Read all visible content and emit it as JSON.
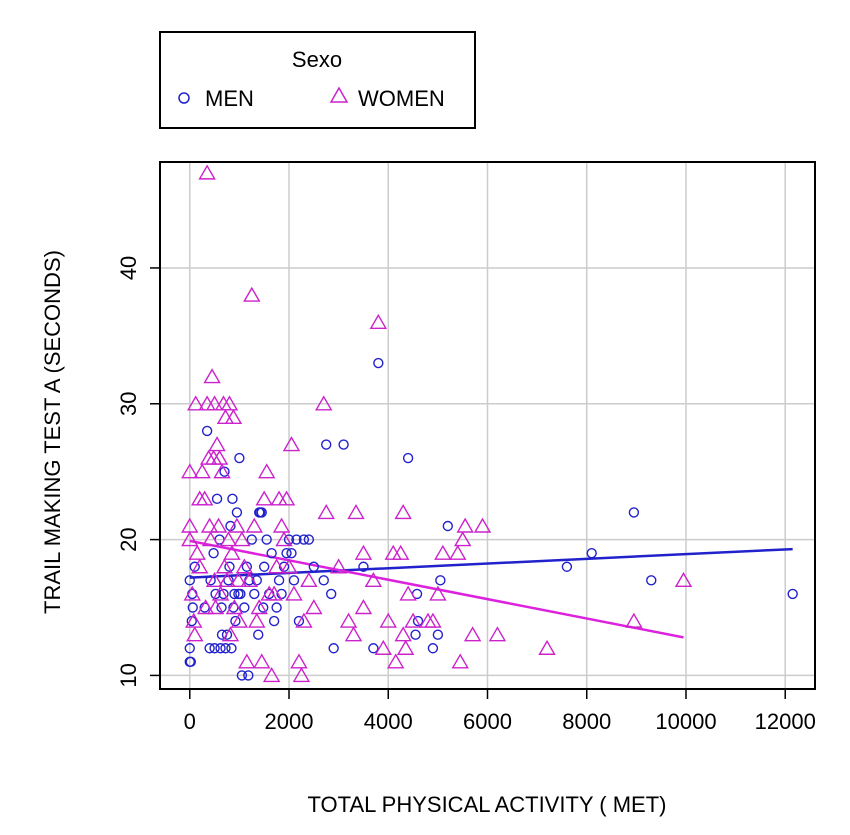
{
  "chart_data": {
    "type": "scatter",
    "xlabel": "TOTAL PHYSICAL ACTIVITY ( MET)",
    "ylabel": "TRAIL MAKING TEST A (SECONDS)",
    "xlim": [
      -600,
      12600
    ],
    "ylim": [
      9,
      47.8
    ],
    "x_ticks": [
      0,
      2000,
      4000,
      6000,
      8000,
      10000,
      12000
    ],
    "y_ticks": [
      10,
      20,
      30,
      40
    ],
    "grid": true,
    "legend": {
      "title": "Sexo",
      "position": "top-left",
      "entries": [
        {
          "label": "MEN",
          "marker": "circle",
          "color": "#2222cc"
        },
        {
          "label": "WOMEN",
          "marker": "triangle",
          "color": "#cc22cc"
        }
      ]
    },
    "series": [
      {
        "name": "MEN",
        "marker": "circle",
        "color": "#2222cc",
        "points": [
          [
            0,
            11
          ],
          [
            20,
            11
          ],
          [
            0,
            12
          ],
          [
            40,
            14
          ],
          [
            60,
            15
          ],
          [
            50,
            16
          ],
          [
            0,
            17
          ],
          [
            100,
            18
          ],
          [
            300,
            15
          ],
          [
            350,
            28
          ],
          [
            400,
            12
          ],
          [
            420,
            17
          ],
          [
            480,
            19
          ],
          [
            500,
            12
          ],
          [
            520,
            16
          ],
          [
            550,
            23
          ],
          [
            600,
            20
          ],
          [
            620,
            12
          ],
          [
            640,
            15
          ],
          [
            650,
            13
          ],
          [
            680,
            16
          ],
          [
            700,
            25
          ],
          [
            720,
            12
          ],
          [
            750,
            13
          ],
          [
            780,
            17
          ],
          [
            800,
            18
          ],
          [
            820,
            21
          ],
          [
            840,
            12
          ],
          [
            860,
            23
          ],
          [
            880,
            15
          ],
          [
            900,
            16
          ],
          [
            920,
            14
          ],
          [
            950,
            22
          ],
          [
            980,
            16
          ],
          [
            1000,
            26
          ],
          [
            1020,
            16
          ],
          [
            1050,
            10
          ],
          [
            1100,
            15
          ],
          [
            1150,
            18
          ],
          [
            1180,
            10
          ],
          [
            1200,
            17
          ],
          [
            1250,
            20
          ],
          [
            1300,
            16
          ],
          [
            1350,
            17
          ],
          [
            1380,
            13
          ],
          [
            1400,
            22
          ],
          [
            1420,
            22
          ],
          [
            1450,
            22
          ],
          [
            1480,
            15
          ],
          [
            1500,
            18
          ],
          [
            1550,
            20
          ],
          [
            1600,
            16
          ],
          [
            1650,
            19
          ],
          [
            1700,
            14
          ],
          [
            1750,
            15
          ],
          [
            1800,
            17
          ],
          [
            1850,
            16
          ],
          [
            1900,
            18
          ],
          [
            1950,
            19
          ],
          [
            2000,
            20
          ],
          [
            2050,
            19
          ],
          [
            2100,
            17
          ],
          [
            2150,
            20
          ],
          [
            2200,
            14
          ],
          [
            2300,
            20
          ],
          [
            2400,
            20
          ],
          [
            2500,
            18
          ],
          [
            2700,
            17
          ],
          [
            2750,
            27
          ],
          [
            2850,
            16
          ],
          [
            2900,
            12
          ],
          [
            3100,
            27
          ],
          [
            3500,
            18
          ],
          [
            3700,
            12
          ],
          [
            3800,
            33
          ],
          [
            4400,
            26
          ],
          [
            4550,
            13
          ],
          [
            4580,
            16
          ],
          [
            4600,
            14
          ],
          [
            4900,
            12
          ],
          [
            5000,
            13
          ],
          [
            5050,
            17
          ],
          [
            5200,
            21
          ],
          [
            7600,
            18
          ],
          [
            8100,
            19
          ],
          [
            8950,
            22
          ],
          [
            9300,
            17
          ],
          [
            12150,
            16
          ]
        ]
      },
      {
        "name": "WOMEN",
        "marker": "triangle",
        "color": "#cc22cc",
        "points": [
          [
            0,
            25
          ],
          [
            0,
            21
          ],
          [
            0,
            20
          ],
          [
            50,
            16
          ],
          [
            80,
            14
          ],
          [
            100,
            13
          ],
          [
            120,
            30
          ],
          [
            150,
            19
          ],
          [
            200,
            18
          ],
          [
            200,
            23
          ],
          [
            250,
            25
          ],
          [
            300,
            23
          ],
          [
            320,
            15
          ],
          [
            350,
            30
          ],
          [
            350,
            47
          ],
          [
            380,
            26
          ],
          [
            400,
            21
          ],
          [
            420,
            20
          ],
          [
            450,
            32
          ],
          [
            480,
            26
          ],
          [
            500,
            30
          ],
          [
            500,
            17
          ],
          [
            520,
            15
          ],
          [
            550,
            27
          ],
          [
            580,
            21
          ],
          [
            600,
            26
          ],
          [
            620,
            16
          ],
          [
            650,
            25
          ],
          [
            680,
            30
          ],
          [
            700,
            18
          ],
          [
            720,
            29
          ],
          [
            750,
            17
          ],
          [
            780,
            20
          ],
          [
            800,
            30
          ],
          [
            820,
            13
          ],
          [
            850,
            19
          ],
          [
            880,
            29
          ],
          [
            900,
            15
          ],
          [
            950,
            21
          ],
          [
            980,
            17
          ],
          [
            1000,
            14
          ],
          [
            1050,
            20
          ],
          [
            1100,
            18
          ],
          [
            1150,
            11
          ],
          [
            1200,
            17
          ],
          [
            1250,
            38
          ],
          [
            1300,
            21
          ],
          [
            1350,
            14
          ],
          [
            1400,
            15
          ],
          [
            1450,
            11
          ],
          [
            1500,
            23
          ],
          [
            1550,
            25
          ],
          [
            1600,
            16
          ],
          [
            1650,
            10
          ],
          [
            1700,
            16
          ],
          [
            1750,
            18
          ],
          [
            1800,
            23
          ],
          [
            1850,
            21
          ],
          [
            1900,
            20
          ],
          [
            1950,
            23
          ],
          [
            2000,
            18
          ],
          [
            2050,
            27
          ],
          [
            2100,
            16
          ],
          [
            2200,
            11
          ],
          [
            2250,
            10
          ],
          [
            2300,
            14
          ],
          [
            2400,
            17
          ],
          [
            2500,
            15
          ],
          [
            2700,
            30
          ],
          [
            2750,
            22
          ],
          [
            3000,
            18
          ],
          [
            3200,
            14
          ],
          [
            3300,
            13
          ],
          [
            3350,
            22
          ],
          [
            3500,
            15
          ],
          [
            3500,
            19
          ],
          [
            3700,
            17
          ],
          [
            3800,
            36
          ],
          [
            3900,
            12
          ],
          [
            4000,
            14
          ],
          [
            4100,
            19
          ],
          [
            4150,
            11
          ],
          [
            4250,
            19
          ],
          [
            4300,
            22
          ],
          [
            4300,
            13
          ],
          [
            4350,
            12
          ],
          [
            4400,
            16
          ],
          [
            4500,
            14
          ],
          [
            4800,
            14
          ],
          [
            4900,
            14
          ],
          [
            5000,
            16
          ],
          [
            5100,
            19
          ],
          [
            5400,
            19
          ],
          [
            5450,
            11
          ],
          [
            5500,
            20
          ],
          [
            5550,
            21
          ],
          [
            5700,
            13
          ],
          [
            5900,
            21
          ],
          [
            6200,
            13
          ],
          [
            7200,
            12
          ],
          [
            8950,
            14
          ],
          [
            9950,
            17
          ]
        ]
      }
    ],
    "fit_lines": [
      {
        "name": "MEN",
        "color": "#2222cc",
        "x": [
          0,
          12150
        ],
        "y": [
          17.2,
          19.3
        ]
      },
      {
        "name": "WOMEN",
        "color": "#dd22dd",
        "x": [
          0,
          9950
        ],
        "y": [
          19.9,
          12.8
        ]
      }
    ]
  }
}
